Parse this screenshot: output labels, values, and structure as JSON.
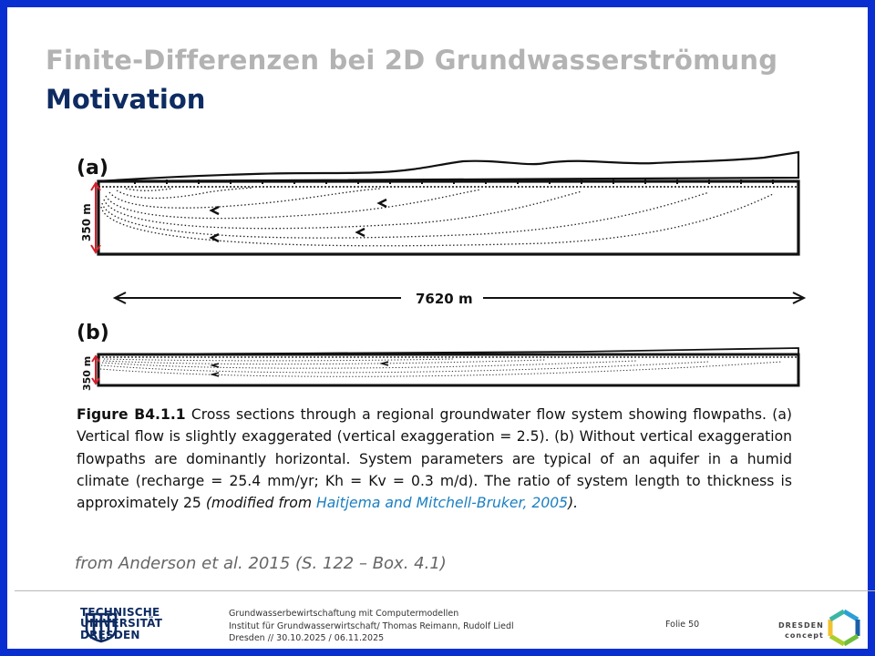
{
  "header": {
    "title": "Finite-Differenzen bei 2D Grundwasserströmung",
    "subtitle": "Motivation"
  },
  "figure": {
    "panel_a_label": "(a)",
    "panel_b_label": "(b)",
    "thickness_label": "350 m",
    "length_label": "7620 m",
    "caption_label": "Figure B4.1.1",
    "caption_text": "Cross sections through a regional groundwater flow system showing flowpaths. (a) Vertical flow is slightly exaggerated (vertical exaggeration = 2.5). (b) Without vertical exaggeration flowpaths are dominantly horizontal. System parameters are typical of an aquifer in a humid climate (recharge = 25.4 mm/yr; Kh = Kv = 0.3 m/d). The ratio of system length to thickness is approximately 25",
    "caption_modified": "(modified from",
    "caption_citation": "Haitjema and Mitchell-Bruker, 2005",
    "caption_end": ")."
  },
  "source_note": "from Anderson et al. 2015 (S. 122 – Box. 4.1)",
  "footer": {
    "university_line1": "TECHNISCHE",
    "university_line2": "UNIVERSITÄT",
    "university_line3": "DRESDEN",
    "course": "Grundwasserbewirtschaftung mit Computermodellen",
    "institute": "Institut für Grundwasserwirtschaft/ Thomas Reimann, Rudolf Liedl",
    "date": "Dresden // 30.10.2025 / 06.11.2025",
    "slide_number": "Folie 50",
    "partner_line1": "DRESDEN",
    "partner_line2": "concept"
  },
  "colors": {
    "frame": "#0a2fd1",
    "title_gray": "#b3b3b3",
    "title_navy": "#0e2b62",
    "arrow_red": "#d0202a",
    "citation_blue": "#1a7fc1"
  }
}
